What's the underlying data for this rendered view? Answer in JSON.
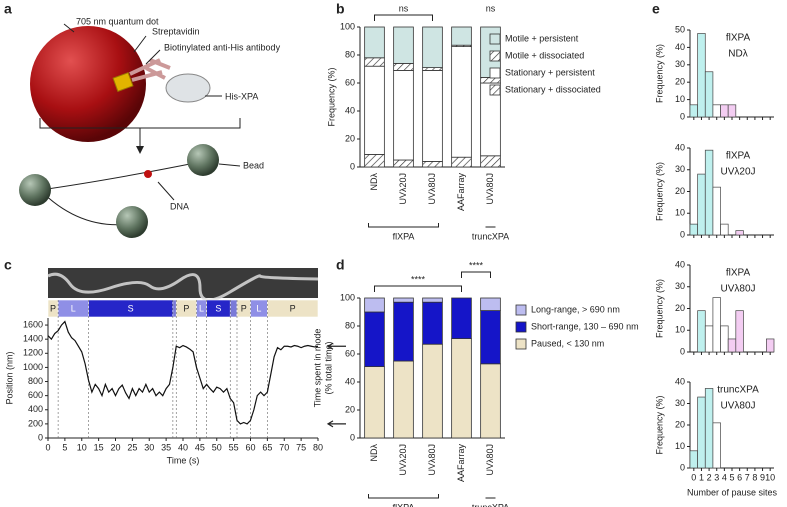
{
  "panel_labels": [
    "a",
    "b",
    "c",
    "d",
    "e"
  ],
  "diagram": {
    "labels": [
      "705 nm quantum dot",
      "Streptavidin",
      "Biotinylated anti-His antibody",
      "His-XPA",
      "Bead",
      "DNA"
    ]
  },
  "chart_data": [
    {
      "type": "stacked-bar",
      "ylabel": "Frequency (%)",
      "categories": [
        "NDλ",
        "UVλ20J",
        "UVλ80J",
        "AAFarray",
        "UVλ80J"
      ],
      "group_labels": [
        "flXPA",
        "truncXPA"
      ],
      "annotations": [
        "ns",
        "ns"
      ],
      "ylim": [
        0,
        100
      ],
      "yticks": [
        0,
        20,
        40,
        60,
        80,
        100
      ],
      "series": [
        {
          "name": "Stationary + dissociated",
          "color": "#ffffff",
          "pattern": "hatch",
          "values": [
            9,
            5,
            4,
            7,
            8
          ]
        },
        {
          "name": "Stationary + persistent",
          "color": "#ffffff",
          "values": [
            63,
            64,
            65,
            79,
            52
          ]
        },
        {
          "name": "Motile + dissociated",
          "color": "#ffffff",
          "pattern": "hatch",
          "values": [
            6,
            5,
            2,
            1,
            4
          ]
        },
        {
          "name": "Motile + persistent",
          "color": "#cfe5e3",
          "values": [
            22,
            26,
            29,
            13,
            36
          ]
        }
      ]
    },
    {
      "type": "line",
      "xlabel": "Time (s)",
      "ylabel": "Position (nm)",
      "xlim": [
        0,
        80
      ],
      "xticks": [
        0,
        5,
        10,
        15,
        20,
        25,
        30,
        35,
        40,
        45,
        50,
        55,
        60,
        65,
        70,
        75,
        80
      ],
      "ylim": [
        0,
        1700
      ],
      "yticks": [
        0,
        200,
        400,
        600,
        800,
        1000,
        1200,
        1400,
        1600
      ],
      "color": "#111111",
      "x": [
        0,
        1,
        2,
        3,
        4,
        5,
        6,
        7,
        8,
        9,
        10,
        11,
        12,
        13,
        14,
        15,
        16,
        17,
        18,
        19,
        20,
        21,
        22,
        23,
        24,
        25,
        26,
        27,
        28,
        29,
        30,
        31,
        32,
        33,
        34,
        35,
        36,
        37,
        38,
        39,
        40,
        41,
        42,
        43,
        44,
        45,
        46,
        47,
        48,
        49,
        50,
        51,
        52,
        53,
        54,
        55,
        56,
        57,
        58,
        59,
        60,
        61,
        62,
        63,
        64,
        65,
        66,
        67,
        68,
        69,
        70,
        71,
        72,
        73,
        74,
        75,
        76,
        77,
        78,
        79,
        80
      ],
      "values": [
        1450,
        1400,
        1480,
        1520,
        1600,
        1650,
        1500,
        1420,
        1380,
        1300,
        1220,
        1050,
        820,
        650,
        760,
        700,
        600,
        760,
        650,
        700,
        600,
        700,
        750,
        640,
        560,
        700,
        600,
        700,
        650,
        760,
        650,
        700,
        600,
        650,
        600,
        700,
        760,
        1000,
        1300,
        1280,
        1310,
        1290,
        1260,
        1220,
        1000,
        850,
        700,
        760,
        700,
        650,
        720,
        700,
        650,
        700,
        560,
        500,
        250,
        200,
        220,
        200,
        250,
        400,
        600,
        650,
        600,
        650,
        900,
        1150,
        1280,
        1250,
        1300,
        1300,
        1290,
        1310,
        1300,
        1280,
        1300,
        1310,
        1300,
        1290,
        1300
      ],
      "modes": [
        {
          "label": "P",
          "start": 0,
          "end": 3
        },
        {
          "label": "L",
          "start": 3,
          "end": 12
        },
        {
          "label": "S",
          "start": 12,
          "end": 37
        },
        {
          "label": null,
          "start": 37,
          "end": 38
        },
        {
          "label": "P",
          "start": 38,
          "end": 44
        },
        {
          "label": "L",
          "start": 44,
          "end": 47
        },
        {
          "label": "S",
          "start": 47,
          "end": 54
        },
        {
          "label": null,
          "start": 54,
          "end": 56
        },
        {
          "label": "P",
          "start": 56,
          "end": 60
        },
        {
          "label": "L",
          "start": 60,
          "end": 65
        },
        {
          "label": "P",
          "start": 65,
          "end": 80
        }
      ],
      "mode_colors": {
        "P": "#ede3c6",
        "L": "#8f8fe6",
        "S": "#2626c8"
      },
      "arrows": [
        1300,
        200
      ]
    },
    {
      "type": "stacked-bar",
      "ylabel": "Time spent in mode",
      "ylabel2": "(% total time)",
      "categories": [
        "NDλ",
        "UVλ20J",
        "UVλ80J",
        "AAFarray",
        "UVλ80J"
      ],
      "group_labels": [
        "flXPA",
        "truncXPA"
      ],
      "annotations": [
        "****",
        "****"
      ],
      "ylim": [
        0,
        100
      ],
      "yticks": [
        0,
        20,
        40,
        60,
        80,
        100
      ],
      "series": [
        {
          "name": "Paused, < 130 nm",
          "color": "#ede3c6",
          "values": [
            51,
            55,
            67,
            71,
            53
          ]
        },
        {
          "name": "Short-range, 130 – 690 nm",
          "color": "#1515c8",
          "values": [
            39,
            42,
            30,
            29,
            38
          ]
        },
        {
          "name": "Long-range, > 690 nm",
          "color": "#bdbdf0",
          "values": [
            10,
            3,
            3,
            0,
            9
          ]
        }
      ]
    },
    {
      "type": "hist",
      "title": "flXPA",
      "subtitle": "NDλ",
      "ylabel": "Frequency (%)",
      "ylim": [
        0,
        50
      ],
      "yticks": [
        0,
        10,
        20,
        30,
        40,
        50
      ],
      "values": [
        7,
        48,
        26,
        7,
        7,
        7,
        0,
        0,
        0,
        0,
        0
      ],
      "colors": [
        "#bff0ee",
        "#bff0ee",
        "#bff0ee",
        "#ffffff",
        "#f3cdf2",
        "#f3cdf2",
        "#f3cdf2",
        "#f3cdf2",
        "#f3cdf2",
        "#f3cdf2",
        "#f3cdf2"
      ]
    },
    {
      "type": "hist",
      "title": "flXPA",
      "subtitle": "UVλ20J",
      "ylabel": "Frequency (%)",
      "ylim": [
        0,
        40
      ],
      "yticks": [
        0,
        10,
        20,
        30,
        40
      ],
      "values": [
        5,
        28,
        39,
        22,
        5,
        0,
        2,
        0,
        0,
        0,
        0
      ],
      "colors": [
        "#bff0ee",
        "#bff0ee",
        "#bff0ee",
        "#ffffff",
        "#ffffff",
        "#f3cdf2",
        "#f3cdf2",
        "#f3cdf2",
        "#f3cdf2",
        "#f3cdf2",
        "#f3cdf2"
      ]
    },
    {
      "type": "hist",
      "title": "flXPA",
      "subtitle": "UVλ80J",
      "ylabel": "Frequency (%)",
      "ylim": [
        0,
        40
      ],
      "yticks": [
        0,
        10,
        20,
        30,
        40
      ],
      "values": [
        0,
        19,
        12,
        25,
        12,
        6,
        19,
        0,
        0,
        0,
        6
      ],
      "colors": [
        "#bff0ee",
        "#bff0ee",
        "#ffffff",
        "#ffffff",
        "#ffffff",
        "#f3cdf2",
        "#f3cdf2",
        "#f3cdf2",
        "#f3cdf2",
        "#f3cdf2",
        "#f3cdf2"
      ]
    },
    {
      "type": "hist",
      "title": "truncXPA",
      "subtitle": "UVλ80J",
      "ylabel": "Frequency (%)",
      "xlabel": "Number of pause sites",
      "ylim": [
        0,
        40
      ],
      "yticks": [
        0,
        10,
        20,
        30,
        40
      ],
      "categories": [
        "0",
        "1",
        "2",
        "3",
        "4",
        "5",
        "6",
        "7",
        "8",
        "9",
        "10"
      ],
      "values": [
        8,
        33,
        37,
        21,
        0,
        0,
        0,
        0,
        0,
        0,
        0
      ],
      "colors": [
        "#bff0ee",
        "#bff0ee",
        "#bff0ee",
        "#ffffff",
        "#ffffff",
        "#f3cdf2",
        "#f3cdf2",
        "#f3cdf2",
        "#f3cdf2",
        "#f3cdf2",
        "#f3cdf2"
      ]
    }
  ]
}
